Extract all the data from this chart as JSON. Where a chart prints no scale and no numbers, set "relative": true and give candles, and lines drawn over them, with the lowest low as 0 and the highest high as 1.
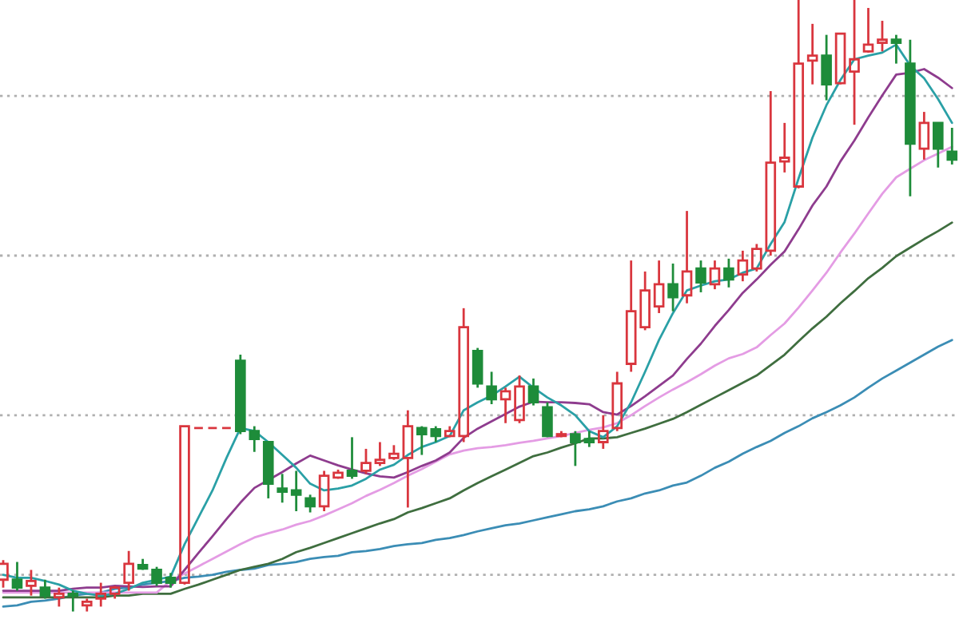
{
  "chart_data": {
    "type": "candlestick",
    "relative": true,
    "categories": [
      null,
      null,
      null,
      null,
      null,
      null,
      null,
      null,
      null,
      null,
      null,
      null,
      null,
      null,
      null,
      null,
      null,
      null,
      null,
      null,
      null,
      null,
      null,
      null,
      null,
      null,
      null,
      null,
      null,
      null,
      null,
      null,
      null,
      null,
      null,
      null,
      null,
      null,
      null,
      null,
      null,
      null,
      null,
      null,
      null,
      null,
      null,
      null,
      null,
      null,
      null,
      null,
      null,
      null,
      null,
      null,
      null,
      null,
      null,
      null,
      null,
      null,
      null,
      null,
      null,
      null,
      null,
      null,
      null
    ],
    "ref_lines": [
      {
        "axis": "y",
        "value": 0.06,
        "color": "#b0b0b0",
        "line_style": "dotted"
      },
      {
        "axis": "y",
        "value": 0.321,
        "color": "#b0b0b0",
        "line_style": "dotted"
      },
      {
        "axis": "y",
        "value": 0.582,
        "color": "#b0b0b0",
        "line_style": "dotted"
      },
      {
        "axis": "y",
        "value": 0.843,
        "color": "#b0b0b0",
        "line_style": "dotted"
      }
    ],
    "ohlc": [
      [
        0.052,
        0.084,
        0.039,
        0.078
      ],
      [
        0.052,
        0.081,
        0.034,
        0.039
      ],
      [
        0.042,
        0.068,
        0.026,
        0.05
      ],
      [
        0.039,
        0.052,
        0.021,
        0.026
      ],
      [
        0.023,
        0.039,
        0.008,
        0.029
      ],
      [
        0.029,
        0.034,
        0.0,
        0.026
      ],
      [
        0.01,
        0.021,
        0.0,
        0.016
      ],
      [
        0.021,
        0.047,
        0.008,
        0.029
      ],
      [
        0.029,
        0.042,
        0.021,
        0.039
      ],
      [
        0.047,
        0.099,
        0.034,
        0.078
      ],
      [
        0.076,
        0.086,
        0.068,
        0.07
      ],
      [
        0.068,
        0.073,
        0.042,
        0.047
      ],
      [
        0.055,
        0.063,
        0.039,
        0.047
      ],
      [
        0.047,
        0.303,
        0.044,
        0.303
      ],
      [
        0.3,
        0.3,
        0.3,
        0.3
      ],
      [
        0.3,
        0.3,
        0.3,
        0.3
      ],
      [
        0.3,
        0.3,
        0.3,
        0.3
      ],
      [
        0.41,
        0.42,
        0.29,
        0.295
      ],
      [
        0.295,
        0.303,
        0.261,
        0.282
      ],
      [
        0.277,
        0.277,
        0.185,
        0.209
      ],
      [
        0.201,
        0.225,
        0.178,
        0.196
      ],
      [
        0.198,
        0.23,
        0.164,
        0.191
      ],
      [
        0.185,
        0.191,
        0.162,
        0.172
      ],
      [
        0.172,
        0.23,
        0.164,
        0.222
      ],
      [
        0.219,
        0.232,
        0.217,
        0.227
      ],
      [
        0.23,
        0.285,
        0.217,
        0.222
      ],
      [
        0.23,
        0.266,
        0.225,
        0.243
      ],
      [
        0.243,
        0.277,
        0.238,
        0.248
      ],
      [
        0.251,
        0.272,
        0.248,
        0.258
      ],
      [
        0.251,
        0.329,
        0.17,
        0.303
      ],
      [
        0.3,
        0.303,
        0.256,
        0.29
      ],
      [
        0.298,
        0.303,
        0.277,
        0.287
      ],
      [
        0.287,
        0.303,
        0.285,
        0.295
      ],
      [
        0.287,
        0.496,
        0.277,
        0.465
      ],
      [
        0.426,
        0.431,
        0.366,
        0.373
      ],
      [
        0.368,
        0.392,
        0.339,
        0.347
      ],
      [
        0.347,
        0.366,
        0.308,
        0.36
      ],
      [
        0.313,
        0.386,
        0.308,
        0.368
      ],
      [
        0.368,
        0.381,
        0.337,
        0.342
      ],
      [
        0.334,
        0.342,
        0.285,
        0.287
      ],
      [
        0.287,
        0.295,
        0.285,
        0.29
      ],
      [
        0.29,
        0.295,
        0.238,
        0.277
      ],
      [
        0.282,
        0.295,
        0.269,
        0.277
      ],
      [
        0.277,
        0.321,
        0.266,
        0.295
      ],
      [
        0.3,
        0.392,
        0.295,
        0.373
      ],
      [
        0.405,
        0.574,
        0.392,
        0.491
      ],
      [
        0.465,
        0.556,
        0.46,
        0.525
      ],
      [
        0.499,
        0.574,
        0.488,
        0.535
      ],
      [
        0.535,
        0.569,
        0.491,
        0.514
      ],
      [
        0.517,
        0.655,
        0.504,
        0.556
      ],
      [
        0.561,
        0.574,
        0.522,
        0.538
      ],
      [
        0.535,
        0.574,
        0.527,
        0.561
      ],
      [
        0.561,
        0.577,
        0.53,
        0.543
      ],
      [
        0.551,
        0.59,
        0.54,
        0.574
      ],
      [
        0.561,
        0.601,
        0.556,
        0.593
      ],
      [
        0.59,
        0.851,
        0.582,
        0.734
      ],
      [
        0.736,
        0.799,
        0.718,
        0.742
      ],
      [
        0.695,
        1.0,
        0.692,
        0.896
      ],
      [
        0.901,
        0.961,
        0.862,
        0.909
      ],
      [
        0.909,
        0.943,
        0.836,
        0.862
      ],
      [
        0.864,
        0.945,
        0.862,
        0.945
      ],
      [
        0.883,
        1.0,
        0.796,
        0.903
      ],
      [
        0.916,
        0.987,
        0.914,
        0.927
      ],
      [
        0.93,
        0.966,
        0.916,
        0.935
      ],
      [
        0.935,
        0.943,
        0.896,
        0.93
      ],
      [
        0.896,
        0.935,
        0.679,
        0.765
      ],
      [
        0.757,
        0.817,
        0.739,
        0.799
      ],
      [
        0.799,
        0.799,
        0.726,
        0.757
      ],
      [
        0.752,
        0.791,
        0.731,
        0.739
      ]
    ],
    "colors": [
      "#d9363e",
      "#1e8c3a",
      "#d9363e",
      "#1e8c3a",
      "#d9363e",
      "#1e8c3a",
      "#d9363e",
      "#d9363e",
      "#d9363e",
      "#d9363e",
      "#1e8c3a",
      "#1e8c3a",
      "#1e8c3a",
      "#d9363e",
      "#d9363e",
      "#d9363e",
      "#d9363e",
      "#1e8c3a",
      "#1e8c3a",
      "#1e8c3a",
      "#1e8c3a",
      "#1e8c3a",
      "#1e8c3a",
      "#d9363e",
      "#d9363e",
      "#1e8c3a",
      "#d9363e",
      "#d9363e",
      "#d9363e",
      "#d9363e",
      "#1e8c3a",
      "#1e8c3a",
      "#d9363e",
      "#d9363e",
      "#1e8c3a",
      "#1e8c3a",
      "#d9363e",
      "#d9363e",
      "#1e8c3a",
      "#1e8c3a",
      "#d9363e",
      "#1e8c3a",
      "#1e8c3a",
      "#d9363e",
      "#d9363e",
      "#d9363e",
      "#d9363e",
      "#d9363e",
      "#1e8c3a",
      "#d9363e",
      "#1e8c3a",
      "#d9363e",
      "#1e8c3a",
      "#d9363e",
      "#d9363e",
      "#d9363e",
      "#d9363e",
      "#d9363e",
      "#d9363e",
      "#1e8c3a",
      "#d9363e",
      "#d9363e",
      "#d9363e",
      "#d9363e",
      "#1e8c3a",
      "#1e8c3a",
      "#d9363e",
      "#1e8c3a",
      "#1e8c3a"
    ],
    "series": [
      {
        "type": "line",
        "color": "#3b8db5",
        "values": [
          0.008,
          0.01,
          0.016,
          0.018,
          0.021,
          0.026,
          0.029,
          0.031,
          0.037,
          0.039,
          0.044,
          0.047,
          0.05,
          0.055,
          0.057,
          0.06,
          0.065,
          0.068,
          0.07,
          0.076,
          0.078,
          0.081,
          0.086,
          0.089,
          0.091,
          0.097,
          0.099,
          0.102,
          0.107,
          0.11,
          0.112,
          0.117,
          0.12,
          0.125,
          0.131,
          0.136,
          0.141,
          0.144,
          0.149,
          0.154,
          0.159,
          0.164,
          0.167,
          0.172,
          0.18,
          0.185,
          0.193,
          0.198,
          0.206,
          0.211,
          0.222,
          0.235,
          0.245,
          0.258,
          0.269,
          0.279,
          0.292,
          0.303,
          0.316,
          0.326,
          0.337,
          0.35,
          0.366,
          0.381,
          0.394,
          0.407,
          0.42,
          0.433,
          0.444
        ]
      },
      {
        "type": "line",
        "color": "#3f6e3f",
        "values": [
          0.023,
          0.023,
          0.023,
          0.023,
          0.023,
          0.023,
          0.023,
          0.023,
          0.026,
          0.026,
          0.029,
          0.029,
          0.029,
          0.037,
          0.044,
          0.052,
          0.06,
          0.068,
          0.073,
          0.078,
          0.086,
          0.097,
          0.104,
          0.112,
          0.12,
          0.128,
          0.136,
          0.144,
          0.151,
          0.162,
          0.169,
          0.177,
          0.185,
          0.198,
          0.21,
          0.221,
          0.232,
          0.243,
          0.254,
          0.26,
          0.268,
          0.275,
          0.283,
          0.283,
          0.285,
          0.292,
          0.299,
          0.307,
          0.315,
          0.326,
          0.338,
          0.35,
          0.362,
          0.374,
          0.386,
          0.403,
          0.42,
          0.442,
          0.463,
          0.482,
          0.504,
          0.524,
          0.545,
          0.562,
          0.581,
          0.595,
          0.609,
          0.622,
          0.636
        ]
      },
      {
        "type": "line",
        "color": "#e49ce4",
        "values": [
          0.031,
          0.031,
          0.031,
          0.031,
          0.031,
          0.031,
          0.031,
          0.031,
          0.031,
          0.031,
          0.031,
          0.031,
          0.05,
          0.062,
          0.074,
          0.086,
          0.098,
          0.11,
          0.121,
          0.128,
          0.134,
          0.142,
          0.148,
          0.157,
          0.167,
          0.177,
          0.189,
          0.199,
          0.21,
          0.222,
          0.233,
          0.245,
          0.257,
          0.263,
          0.267,
          0.269,
          0.272,
          0.276,
          0.279,
          0.283,
          0.287,
          0.292,
          0.297,
          0.301,
          0.308,
          0.321,
          0.336,
          0.35,
          0.363,
          0.375,
          0.388,
          0.402,
          0.414,
          0.421,
          0.432,
          0.452,
          0.471,
          0.497,
          0.525,
          0.554,
          0.587,
          0.618,
          0.651,
          0.683,
          0.71,
          0.724,
          0.738,
          0.749,
          0.76
        ]
      },
      {
        "type": "line",
        "color": "#8e3c8e",
        "values": [
          0.034,
          0.034,
          0.034,
          0.034,
          0.034,
          0.037,
          0.039,
          0.039,
          0.042,
          0.041,
          0.04,
          0.041,
          0.041,
          0.068,
          0.096,
          0.123,
          0.151,
          0.178,
          0.202,
          0.215,
          0.228,
          0.242,
          0.255,
          0.247,
          0.239,
          0.232,
          0.226,
          0.221,
          0.219,
          0.228,
          0.238,
          0.247,
          0.26,
          0.284,
          0.299,
          0.311,
          0.323,
          0.335,
          0.343,
          0.342,
          0.342,
          0.341,
          0.339,
          0.326,
          0.322,
          0.336,
          0.352,
          0.369,
          0.386,
          0.413,
          0.438,
          0.467,
          0.493,
          0.521,
          0.543,
          0.567,
          0.589,
          0.625,
          0.664,
          0.695,
          0.736,
          0.77,
          0.808,
          0.844,
          0.878,
          0.881,
          0.887,
          0.873,
          0.856
        ]
      },
      {
        "type": "line",
        "color": "#2aa0a6",
        "values": [
          0.06,
          0.055,
          0.055,
          0.05,
          0.044,
          0.034,
          0.029,
          0.026,
          0.029,
          0.037,
          0.047,
          0.052,
          0.057,
          0.11,
          0.154,
          0.198,
          0.251,
          0.3,
          0.295,
          0.277,
          0.256,
          0.235,
          0.209,
          0.198,
          0.201,
          0.206,
          0.217,
          0.232,
          0.24,
          0.256,
          0.269,
          0.277,
          0.287,
          0.329,
          0.342,
          0.353,
          0.368,
          0.384,
          0.366,
          0.35,
          0.337,
          0.321,
          0.295,
          0.285,
          0.303,
          0.342,
          0.392,
          0.444,
          0.488,
          0.525,
          0.533,
          0.54,
          0.543,
          0.554,
          0.561,
          0.601,
          0.637,
          0.708,
          0.775,
          0.828,
          0.869,
          0.903,
          0.909,
          0.914,
          0.927,
          0.893,
          0.872,
          0.838,
          0.799
        ]
      }
    ]
  }
}
